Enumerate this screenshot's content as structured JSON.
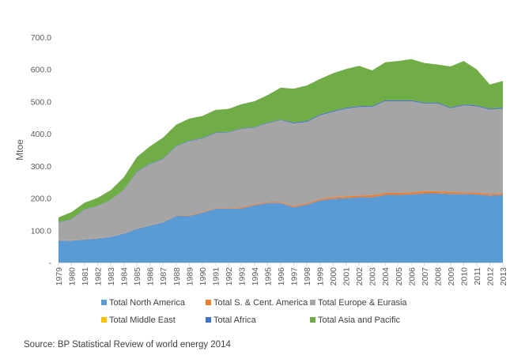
{
  "source": "Source: BP Statistical Review of world energy  2014",
  "chart_data": {
    "type": "area",
    "stacked": true,
    "title": "",
    "xlabel": "",
    "ylabel": "Mtoe",
    "ylim": [
      0,
      700
    ],
    "yticks": [
      "-",
      "100.0",
      "200.0",
      "300.0",
      "400.0",
      "500.0",
      "600.0",
      "700.0"
    ],
    "grid": false,
    "legend_position": "bottom",
    "x": [
      "1979",
      "1980",
      "1981",
      "1982",
      "1983",
      "1984",
      "1985",
      "1986",
      "1987",
      "1988",
      "1989",
      "1990",
      "1991",
      "1992",
      "1993",
      "1994",
      "1995",
      "1996",
      "1997",
      "1998",
      "1999",
      "2000",
      "2001",
      "2002",
      "2003",
      "2004",
      "2005",
      "2006",
      "2007",
      "2008",
      "2009",
      "2010",
      "2011",
      "2012",
      "2013"
    ],
    "series": [
      {
        "name": "Total North America",
        "color": "#5b9bd5",
        "values": [
          68,
          68,
          72,
          75,
          80,
          90,
          105,
          115,
          125,
          145,
          145,
          155,
          167,
          167,
          168,
          178,
          185,
          185,
          172,
          180,
          193,
          198,
          200,
          203,
          203,
          210,
          210,
          212,
          215,
          215,
          213,
          213,
          212,
          208,
          210
        ]
      },
      {
        "name": "Total S. & Cent. America",
        "color": "#ed7d31",
        "values": [
          1,
          1,
          1,
          1,
          1,
          1,
          1,
          1,
          1,
          1,
          2,
          2,
          2,
          2,
          3,
          3,
          3,
          3,
          4,
          4,
          4,
          5,
          5,
          5,
          6,
          6,
          6,
          6,
          7,
          6,
          6,
          5,
          5,
          5,
          5
        ]
      },
      {
        "name": "Total Europe & Eurasia",
        "color": "#a5a5a5",
        "values": [
          55,
          65,
          92,
          99,
          113,
          135,
          175,
          190,
          195,
          215,
          230,
          228,
          233,
          235,
          244,
          238,
          245,
          254,
          256,
          253,
          260,
          265,
          273,
          275,
          275,
          285,
          285,
          283,
          272,
          273,
          260,
          270,
          268,
          262,
          263
        ]
      },
      {
        "name": "Total Middle East",
        "color": "#ffc000",
        "values": [
          0,
          0,
          0,
          0,
          0,
          0,
          0,
          0,
          0,
          0,
          0,
          0,
          0,
          0,
          0,
          0,
          0,
          0,
          0,
          0,
          0,
          0,
          0,
          0,
          0,
          0,
          0,
          0,
          0,
          0,
          0,
          0,
          0,
          0,
          0
        ]
      },
      {
        "name": "Total Africa",
        "color": "#4472c4",
        "values": [
          1,
          1,
          1,
          1,
          1,
          1,
          2,
          2,
          2,
          2,
          2,
          2,
          2,
          2,
          2,
          2,
          2,
          2,
          3,
          3,
          3,
          3,
          3,
          3,
          3,
          3,
          3,
          3,
          3,
          3,
          3,
          3,
          3,
          3,
          3
        ]
      },
      {
        "name": "Total Asia and Pacific",
        "color": "#70ad47",
        "values": [
          15,
          22,
          20,
          25,
          30,
          38,
          45,
          53,
          65,
          65,
          68,
          68,
          70,
          71,
          75,
          80,
          85,
          99,
          105,
          110,
          110,
          117,
          120,
          125,
          110,
          118,
          122,
          128,
          123,
          118,
          127,
          135,
          112,
          75,
          83
        ]
      }
    ]
  }
}
